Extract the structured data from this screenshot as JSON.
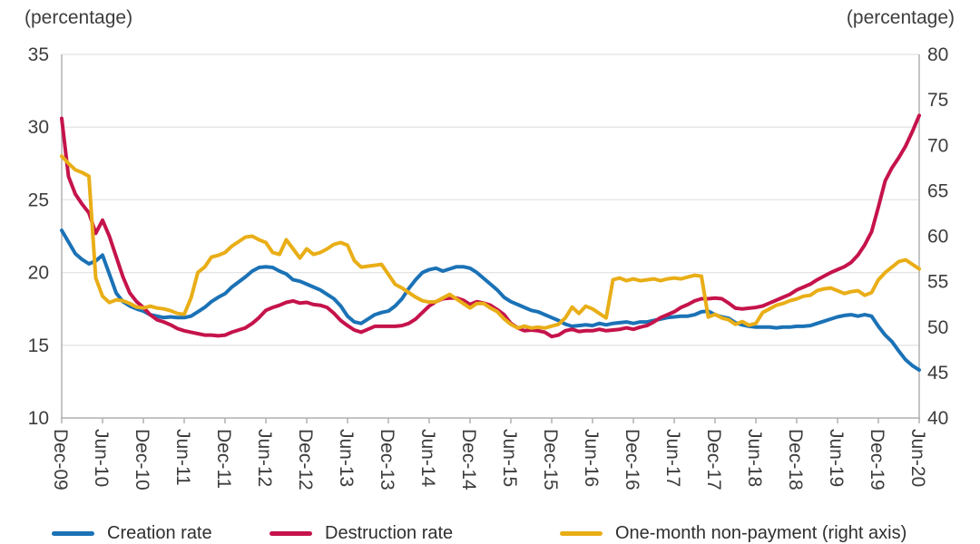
{
  "chart": {
    "left_axis_title": "(percentage)",
    "right_axis_title": "(percentage)",
    "colors": {
      "creation_blue": "#1b72b6",
      "destruction_red": "#c5134b",
      "nonpayment_yellow": "#e9ae17",
      "grid": "#e4e4e4",
      "axis": "#b0b0b0",
      "tick_text": "#3d3d3d"
    }
  },
  "legend": {
    "items": [
      {
        "label": "Creation rate"
      },
      {
        "label": "Destruction rate"
      },
      {
        "label": "One-month non-payment (right axis)"
      }
    ]
  },
  "chart_data": {
    "type": "line",
    "x_freq": "monthly",
    "x_start": "Dec-09",
    "x_end": "Jun-20",
    "x_tick_every": 6,
    "x_tick_labels": [
      "Dec-09",
      "Jun-10",
      "Dec-10",
      "Jun-11",
      "Dec-11",
      "Jun-12",
      "Dec-12",
      "Jun-13",
      "Dec-13",
      "Jun-14",
      "Dec-14",
      "Jun-15",
      "Dec-15",
      "Jun-16",
      "Dec-16",
      "Jun-17",
      "Dec-17",
      "Jun-18",
      "Dec-18",
      "Jun-19",
      "Dec-19",
      "Jun-20"
    ],
    "left_axis": {
      "title": "(percentage)",
      "range": [
        10,
        35
      ],
      "ticks": [
        35,
        30,
        25,
        20,
        15,
        10
      ]
    },
    "right_axis": {
      "title": "(percentage)",
      "range": [
        40,
        80
      ],
      "ticks": [
        80,
        75,
        70,
        65,
        60,
        55,
        50,
        45,
        40
      ]
    },
    "grid": true,
    "legend_position": "bottom",
    "series": [
      {
        "name": "Creation rate",
        "axis": "left",
        "color": "#1b72b6",
        "values": [
          22.9,
          22.1,
          21.3,
          20.9,
          20.6,
          20.8,
          21.2,
          19.9,
          18.6,
          18.0,
          17.7,
          17.5,
          17.35,
          17.1,
          17.0,
          16.9,
          16.95,
          16.9,
          16.9,
          17.0,
          17.3,
          17.6,
          18.0,
          18.3,
          18.55,
          19.0,
          19.35,
          19.7,
          20.1,
          20.35,
          20.4,
          20.35,
          20.1,
          19.9,
          19.5,
          19.4,
          19.2,
          19.0,
          18.8,
          18.5,
          18.2,
          17.7,
          17.0,
          16.6,
          16.5,
          16.8,
          17.1,
          17.25,
          17.35,
          17.7,
          18.2,
          18.9,
          19.5,
          20.0,
          20.2,
          20.3,
          20.1,
          20.25,
          20.4,
          20.4,
          20.3,
          20.0,
          19.6,
          19.2,
          18.8,
          18.3,
          18.0,
          17.8,
          17.6,
          17.4,
          17.3,
          17.1,
          16.9,
          16.7,
          16.45,
          16.3,
          16.35,
          16.4,
          16.35,
          16.5,
          16.4,
          16.5,
          16.55,
          16.6,
          16.5,
          16.6,
          16.6,
          16.7,
          16.8,
          16.9,
          16.95,
          17.0,
          17.0,
          17.1,
          17.3,
          17.35,
          17.1,
          16.95,
          16.85,
          16.55,
          16.4,
          16.3,
          16.25,
          16.25,
          16.25,
          16.2,
          16.25,
          16.25,
          16.3,
          16.3,
          16.35,
          16.5,
          16.65,
          16.8,
          16.95,
          17.05,
          17.1,
          17.0,
          17.1,
          17.0,
          16.3,
          15.7,
          15.25,
          14.6,
          14.0,
          13.6,
          13.3
        ]
      },
      {
        "name": "Destruction rate",
        "axis": "left",
        "color": "#c5134b",
        "values": [
          30.6,
          26.6,
          25.4,
          24.7,
          24.1,
          22.7,
          23.6,
          22.5,
          21.1,
          19.7,
          18.6,
          18.0,
          17.6,
          17.1,
          16.75,
          16.6,
          16.4,
          16.15,
          16.0,
          15.9,
          15.8,
          15.7,
          15.7,
          15.65,
          15.7,
          15.9,
          16.05,
          16.2,
          16.5,
          16.9,
          17.4,
          17.6,
          17.75,
          17.95,
          18.05,
          17.9,
          17.95,
          17.8,
          17.75,
          17.6,
          17.2,
          16.7,
          16.35,
          16.05,
          15.9,
          16.1,
          16.3,
          16.3,
          16.3,
          16.3,
          16.35,
          16.5,
          16.8,
          17.25,
          17.7,
          18.0,
          18.2,
          18.25,
          18.25,
          18.1,
          17.8,
          18.0,
          17.9,
          17.75,
          17.45,
          17.1,
          16.5,
          16.2,
          16.0,
          16.05,
          16.0,
          15.9,
          15.6,
          15.7,
          16.0,
          16.1,
          15.95,
          16.0,
          16.0,
          16.1,
          16.0,
          16.05,
          16.1,
          16.2,
          16.1,
          16.25,
          16.35,
          16.6,
          16.9,
          17.1,
          17.3,
          17.6,
          17.8,
          18.05,
          18.2,
          18.2,
          18.25,
          18.2,
          17.9,
          17.55,
          17.5,
          17.55,
          17.6,
          17.7,
          17.9,
          18.1,
          18.3,
          18.5,
          18.8,
          19.0,
          19.2,
          19.5,
          19.75,
          20.0,
          20.2,
          20.4,
          20.7,
          21.2,
          21.9,
          22.8,
          24.5,
          26.3,
          27.2,
          27.9,
          28.7,
          29.7,
          30.8
        ]
      },
      {
        "name": "One-month non-payment (right axis)",
        "axis": "right",
        "color": "#e9ae17",
        "values": [
          68.8,
          68.0,
          67.3,
          67.0,
          66.6,
          55.4,
          53.4,
          52.7,
          53.0,
          52.9,
          52.6,
          52.2,
          52.1,
          52.3,
          52.1,
          52.0,
          51.8,
          51.5,
          51.4,
          53.2,
          56.0,
          56.6,
          57.7,
          57.9,
          58.2,
          58.9,
          59.4,
          59.9,
          60.0,
          59.6,
          59.3,
          58.2,
          58.0,
          59.6,
          58.6,
          57.6,
          58.6,
          58.0,
          58.2,
          58.6,
          59.1,
          59.3,
          59.0,
          57.3,
          56.6,
          56.7,
          56.8,
          56.9,
          55.8,
          54.7,
          54.3,
          53.8,
          53.3,
          52.9,
          52.75,
          52.8,
          53.2,
          53.6,
          53.1,
          52.6,
          52.1,
          52.6,
          52.6,
          52.1,
          51.7,
          50.9,
          50.3,
          49.9,
          50.1,
          49.9,
          50.0,
          49.9,
          50.1,
          50.3,
          51.0,
          52.2,
          51.5,
          52.3,
          52.0,
          51.5,
          51.0,
          55.2,
          55.4,
          55.1,
          55.3,
          55.1,
          55.2,
          55.3,
          55.1,
          55.3,
          55.4,
          55.3,
          55.5,
          55.7,
          55.6,
          51.1,
          51.4,
          51.0,
          50.8,
          50.3,
          50.6,
          50.2,
          50.4,
          51.6,
          52.0,
          52.4,
          52.6,
          52.9,
          53.1,
          53.4,
          53.5,
          54.0,
          54.2,
          54.3,
          54.0,
          53.7,
          53.9,
          54.0,
          53.5,
          53.8,
          55.2,
          56.0,
          56.6,
          57.2,
          57.4,
          56.9,
          56.4
        ]
      }
    ]
  }
}
